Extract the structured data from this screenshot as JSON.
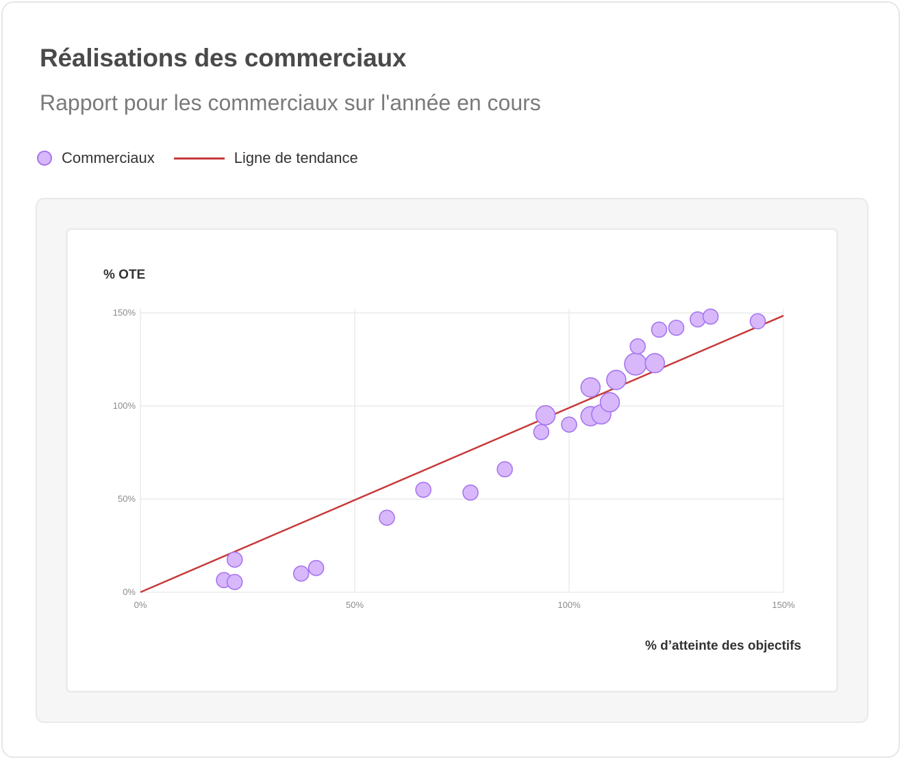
{
  "header": {
    "title": "Réalisations des commerciaux",
    "subtitle": "Rapport pour les commerciaux sur l'année en cours"
  },
  "legend": {
    "points_label": "Commerciaux",
    "trend_label": "Ligne de tendance"
  },
  "colors": {
    "point_fill": "#d8b8fb",
    "point_stroke": "#a574ee",
    "trend": "#c73a3a",
    "grid": "#ececec",
    "tick": "#8a8a8a",
    "axis_title": "#333333"
  },
  "chart_data": {
    "type": "scatter",
    "title": "",
    "xlabel": "% d’atteinte des objectifs",
    "ylabel": "% OTE",
    "xlim": [
      0,
      150
    ],
    "ylim": [
      0,
      150
    ],
    "x_ticks": [
      0,
      50,
      100,
      150
    ],
    "y_ticks": [
      0,
      50,
      100,
      150
    ],
    "x_tick_labels": [
      "0%",
      "50%",
      "100%",
      "150%"
    ],
    "y_tick_labels": [
      "0%",
      "50%",
      "100%",
      "150%"
    ],
    "grid": true,
    "legend_position": "top-left",
    "series": [
      {
        "name": "Commerciaux",
        "points": [
          {
            "x": 19.5,
            "y": 6.5,
            "size": 1
          },
          {
            "x": 22,
            "y": 5.5,
            "size": 1
          },
          {
            "x": 22,
            "y": 17.5,
            "size": 1
          },
          {
            "x": 37.5,
            "y": 10,
            "size": 1
          },
          {
            "x": 41,
            "y": 13,
            "size": 1
          },
          {
            "x": 57.5,
            "y": 40,
            "size": 1
          },
          {
            "x": 66,
            "y": 55,
            "size": 1
          },
          {
            "x": 77,
            "y": 53.5,
            "size": 1
          },
          {
            "x": 85,
            "y": 66,
            "size": 1
          },
          {
            "x": 93.5,
            "y": 86,
            "size": 1
          },
          {
            "x": 94.5,
            "y": 95,
            "size": 2
          },
          {
            "x": 100,
            "y": 90,
            "size": 1
          },
          {
            "x": 105,
            "y": 94.5,
            "size": 2
          },
          {
            "x": 107.5,
            "y": 95.5,
            "size": 2
          },
          {
            "x": 105,
            "y": 110,
            "size": 2
          },
          {
            "x": 109.5,
            "y": 102,
            "size": 2
          },
          {
            "x": 111,
            "y": 114,
            "size": 2
          },
          {
            "x": 115.5,
            "y": 122.5,
            "size": 3
          },
          {
            "x": 116,
            "y": 132,
            "size": 1
          },
          {
            "x": 120,
            "y": 123,
            "size": 2
          },
          {
            "x": 121,
            "y": 141,
            "size": 1
          },
          {
            "x": 125,
            "y": 142,
            "size": 1
          },
          {
            "x": 130,
            "y": 146.5,
            "size": 1
          },
          {
            "x": 133,
            "y": 148,
            "size": 1
          },
          {
            "x": 144,
            "y": 145.5,
            "size": 1
          }
        ]
      },
      {
        "name": "Ligne de tendance",
        "type": "line",
        "x": [
          0,
          150
        ],
        "y": [
          0,
          148.5
        ]
      }
    ]
  }
}
